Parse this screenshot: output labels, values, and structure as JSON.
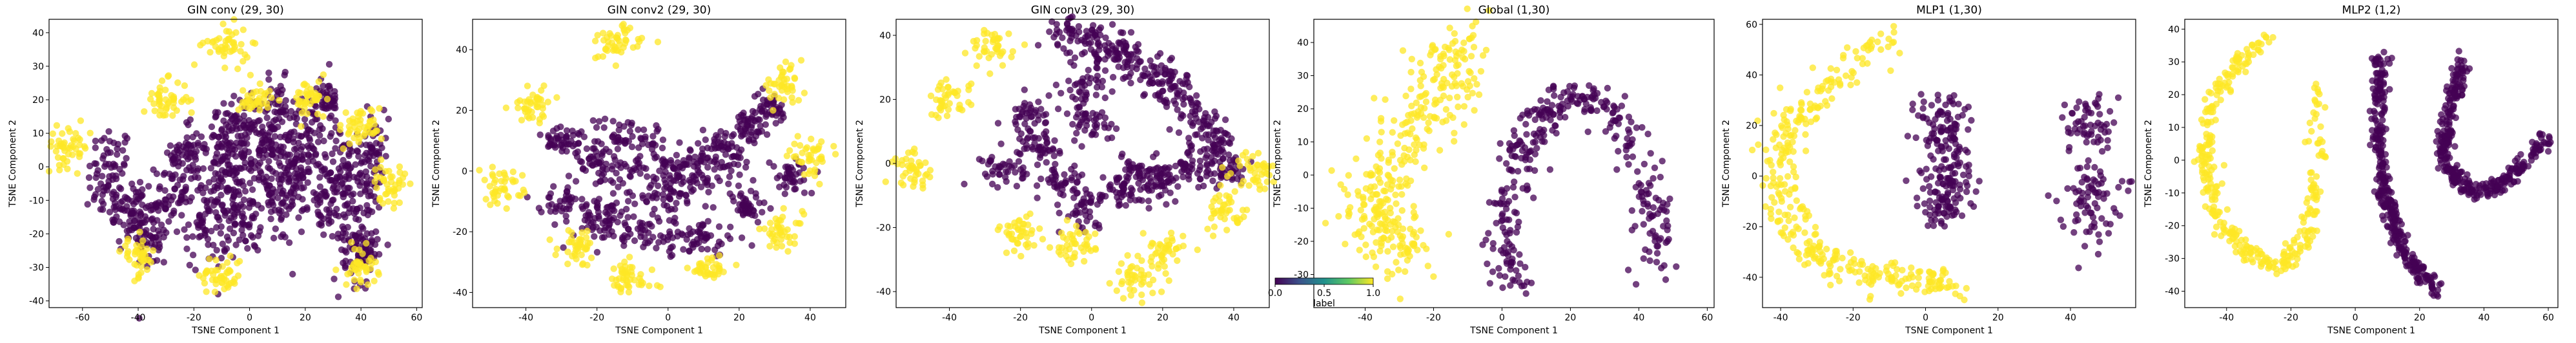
{
  "chart_data": [
    {
      "type": "scatter",
      "title": "GIN conv (29, 30)",
      "xlabel": "TSNE Component 1",
      "ylabel": "TSNE Component 2",
      "xlim": [
        -72,
        62
      ],
      "ylim": [
        -42,
        44
      ],
      "xticks": [
        "-60",
        "-40",
        "-20",
        "0",
        "20",
        "40",
        "60"
      ],
      "yticks": [
        "-40",
        "-30",
        "-20",
        "-10",
        "0",
        "10",
        "20",
        "30",
        "40"
      ],
      "grid": false,
      "series": [
        {
          "label": "0",
          "color": "#440154",
          "clusters": [
            [
              -50,
              -3,
              4,
              8
            ],
            [
              -42,
              -14,
              4,
              6
            ],
            [
              -35,
              -20,
              3,
              6
            ],
            [
              -28,
              -8,
              3,
              6
            ],
            [
              -22,
              4,
              3,
              5
            ],
            [
              -15,
              -15,
              4,
              8
            ],
            [
              -10,
              8,
              3,
              6
            ],
            [
              -6,
              -5,
              4,
              8
            ],
            [
              -2,
              -15,
              3,
              5
            ],
            [
              0,
              12,
              3,
              5
            ],
            [
              4,
              4,
              3,
              5
            ],
            [
              10,
              -8,
              4,
              8
            ],
            [
              10,
              16,
              3,
              5
            ],
            [
              16,
              0,
              3,
              5
            ],
            [
              22,
              10,
              4,
              6
            ],
            [
              26,
              -10,
              4,
              6
            ],
            [
              28,
              20,
              2,
              3
            ],
            [
              34,
              0,
              3,
              5
            ],
            [
              40,
              -15,
              4,
              10
            ],
            [
              44,
              5,
              3,
              6
            ],
            [
              40,
              -25,
              3,
              4
            ]
          ]
        },
        {
          "label": "1",
          "color": "#fde725",
          "clusters": [
            [
              -65,
              6,
              4,
              3
            ],
            [
              -30,
              20,
              4,
              3
            ],
            [
              -40,
              -27,
              3,
              3
            ],
            [
              -10,
              -32,
              4,
              3
            ],
            [
              -8,
              36,
              4,
              3
            ],
            [
              2,
              20,
              3,
              2
            ],
            [
              22,
              20,
              3,
              3
            ],
            [
              40,
              12,
              4,
              3
            ],
            [
              50,
              -5,
              3,
              3
            ],
            [
              40,
              -30,
              3,
              3
            ]
          ]
        }
      ]
    },
    {
      "type": "scatter",
      "title": "GIN conv2 (29, 30)",
      "xlabel": "TSNE Component 1",
      "ylabel": "TSNE Component 2",
      "xlim": [
        -55,
        50
      ],
      "ylim": [
        -45,
        50
      ],
      "xticks": [
        "-40",
        "-20",
        "0",
        "20",
        "40"
      ],
      "yticks": [
        "-40",
        "-20",
        "0",
        "20",
        "40"
      ],
      "grid": false,
      "series": [
        {
          "label": "0",
          "color": "#440154",
          "clusters": [
            [
              -12,
              12,
              6,
              3
            ],
            [
              -20,
              4,
              3,
              2
            ],
            [
              -30,
              10,
              3,
              3
            ],
            [
              -5,
              0,
              8,
              4
            ],
            [
              10,
              0,
              6,
              4
            ],
            [
              15,
              8,
              4,
              3
            ],
            [
              22,
              14,
              3,
              3
            ],
            [
              28,
              20,
              3,
              3
            ],
            [
              -8,
              -20,
              8,
              3
            ],
            [
              8,
              -22,
              6,
              3
            ],
            [
              -18,
              -14,
              3,
              3
            ],
            [
              -30,
              -10,
              3,
              3
            ],
            [
              22,
              -12,
              3,
              3
            ],
            [
              35,
              -2,
              3,
              3
            ],
            [
              0,
              -8,
              5,
              3
            ]
          ]
        },
        {
          "label": "1",
          "color": "#fde725",
          "clusters": [
            [
              -15,
              42,
              4,
              3
            ],
            [
              -38,
              22,
              3,
              3
            ],
            [
              -47,
              -5,
              3,
              3
            ],
            [
              -25,
              -25,
              3,
              3
            ],
            [
              -12,
              -36,
              4,
              3
            ],
            [
              12,
              -32,
              3,
              2
            ],
            [
              32,
              -20,
              3,
              3
            ],
            [
              40,
              5,
              3,
              3
            ],
            [
              32,
              28,
              3,
              3
            ]
          ]
        }
      ]
    },
    {
      "type": "scatter",
      "title": "GIN conv3 (29, 30)",
      "xlabel": "TSNE Component 1",
      "ylabel": "TSNE Component 2",
      "xlim": [
        -55,
        50
      ],
      "ylim": [
        -45,
        45
      ],
      "xticks": [
        "-40",
        "-20",
        "0",
        "20",
        "40"
      ],
      "yticks": [
        "-40",
        "-20",
        "0",
        "20",
        "40"
      ],
      "grid": false,
      "series": [
        {
          "label": "0",
          "color": "#440154",
          "clusters": [
            [
              -5,
              40,
              4,
              3
            ],
            [
              3,
              36,
              4,
              3
            ],
            [
              10,
              32,
              3,
              3
            ],
            [
              18,
              28,
              3,
              3
            ],
            [
              24,
              22,
              3,
              3
            ],
            [
              30,
              14,
              3,
              3
            ],
            [
              35,
              6,
              3,
              3
            ],
            [
              38,
              -2,
              3,
              3
            ],
            [
              -2,
              24,
              3,
              3
            ],
            [
              0,
              12,
              3,
              3
            ],
            [
              -18,
              15,
              3,
              3
            ],
            [
              -8,
              -6,
              3,
              3
            ],
            [
              -2,
              -14,
              3,
              3
            ],
            [
              8,
              -8,
              3,
              3
            ],
            [
              14,
              -2,
              3,
              3
            ],
            [
              20,
              -6,
              3,
              3
            ],
            [
              28,
              -2,
              3,
              3
            ],
            [
              -14,
              5,
              3,
              3
            ],
            [
              -25,
              -2,
              3,
              3
            ]
          ]
        },
        {
          "label": "1",
          "color": "#fde725",
          "clusters": [
            [
              -28,
              36,
              3,
              3
            ],
            [
              -40,
              20,
              3,
              3
            ],
            [
              -50,
              -2,
              3,
              3
            ],
            [
              -20,
              -22,
              3,
              3
            ],
            [
              -5,
              -26,
              3,
              3
            ],
            [
              12,
              -36,
              3,
              3
            ],
            [
              20,
              -28,
              3,
              3
            ],
            [
              38,
              -15,
              3,
              3
            ],
            [
              46,
              -2,
              3,
              3
            ]
          ]
        }
      ]
    },
    {
      "type": "scatter",
      "title": "Global (1,30)",
      "xlabel": "TSNE Component 1",
      "ylabel": "TSNE Component 2",
      "xlim": [
        -55,
        62
      ],
      "ylim": [
        -40,
        47
      ],
      "xticks": [
        "-40",
        "-20",
        "0",
        "20",
        "40",
        "60"
      ],
      "yticks": [
        "-30",
        "-20",
        "-10",
        "0",
        "10",
        "20",
        "30",
        "40"
      ],
      "grid": false,
      "series": [
        {
          "label": "0",
          "color": "#440154",
          "curve": {
            "t": [
              0,
              0.1,
              0.2,
              0.3,
              0.4,
              0.5,
              0.6,
              0.7,
              0.8,
              0.9,
              1
            ],
            "x": [
              3,
              1,
              2,
              5,
              10,
              18,
              28,
              36,
              42,
              46,
              45
            ],
            "y": [
              -35,
              -22,
              -8,
              5,
              16,
              22,
              23,
              15,
              0,
              -15,
              -30
            ]
          },
          "spread": 3
        },
        {
          "label": "1",
          "color": "#fde725",
          "curve": {
            "t": [
              0,
              0.15,
              0.3,
              0.45,
              0.6,
              0.75,
              0.9,
              1
            ],
            "x": [
              -12,
              -15,
              -20,
              -28,
              -35,
              -38,
              -32,
              -25
            ],
            "y": [
              42,
              32,
              20,
              8,
              -2,
              -12,
              -20,
              -25
            ]
          },
          "spread": 5
        }
      ],
      "colorbar": {
        "ticks": [
          "0.0",
          "0.5",
          "1.0"
        ],
        "label": "label"
      }
    },
    {
      "type": "scatter",
      "title": "MLP1 (1,30)",
      "xlabel": "TSNE Component 1",
      "ylabel": "TSNE Component 2",
      "xlim": [
        -45,
        58
      ],
      "ylim": [
        -52,
        62
      ],
      "xticks": [
        "-40",
        "-20",
        "0",
        "20",
        "40"
      ],
      "yticks": [
        "-40",
        "-20",
        "0",
        "20",
        "40",
        "60"
      ],
      "grid": false,
      "series": [
        {
          "label": "0",
          "color": "#440154",
          "clusters": [
            [
              6,
              20,
              4,
              8
            ],
            [
              6,
              0,
              4,
              8
            ],
            [
              5,
              -12,
              3,
              4
            ],
            [
              45,
              20,
              3,
              6
            ],
            [
              45,
              -8,
              4,
              8
            ]
          ]
        },
        {
          "label": "1",
          "color": "#fde725",
          "curve": {
            "t": [
              0,
              0.1,
              0.2,
              0.3,
              0.4,
              0.5,
              0.6,
              0.7,
              0.8,
              0.9,
              1
            ],
            "x": [
              -10,
              -20,
              -30,
              -38,
              -40,
              -38,
              -33,
              -25,
              -15,
              -2,
              8
            ],
            "y": [
              55,
              45,
              32,
              18,
              2,
              -15,
              -28,
              -36,
              -40,
              -42,
              -43
            ]
          },
          "spread": 3
        }
      ]
    },
    {
      "type": "scatter",
      "title": "MLP2 (1,2)",
      "xlabel": "TSNE Component 1",
      "ylabel": "TSNE Component 2",
      "xlim": [
        -53,
        63
      ],
      "ylim": [
        -45,
        43
      ],
      "xticks": [
        "-40",
        "-20",
        "0",
        "20",
        "40",
        "60"
      ],
      "yticks": [
        "-40",
        "-30",
        "-20",
        "-10",
        "0",
        "10",
        "20",
        "30",
        "40"
      ],
      "grid": false,
      "series": [
        {
          "label": "1",
          "color": "#fde725",
          "curve": {
            "t": [
              0,
              0.1,
              0.2,
              0.3,
              0.4,
              0.5,
              0.6,
              0.7,
              0.8,
              0.9,
              1
            ],
            "x": [
              -27,
              -36,
              -43,
              -47,
              -46,
              -42,
              -34,
              -24,
              -15,
              -12,
              -12
            ],
            "y": [
              37,
              30,
              20,
              6,
              -6,
              -18,
              -28,
              -33,
              -25,
              -5,
              25
            ]
          },
          "spread": 1.5
        },
        {
          "label": "0",
          "color": "#440154",
          "curve": {
            "t": [
              0,
              0.25,
              0.5,
              0.75,
              1
            ],
            "x": [
              8,
              7,
              9,
              15,
              25
            ],
            "y": [
              32,
              10,
              -10,
              -28,
              -40
            ]
          },
          "spread": 1.2
        },
        {
          "label": "0",
          "color": "#440154",
          "curve": {
            "t": [
              0,
              0.2,
              0.4,
              0.6,
              0.8,
              1
            ],
            "x": [
              33,
              28,
              28,
              37,
              48,
              60
            ],
            "y": [
              30,
              10,
              -2,
              -10,
              -6,
              8
            ]
          },
          "spread": 1.2
        }
      ]
    }
  ]
}
